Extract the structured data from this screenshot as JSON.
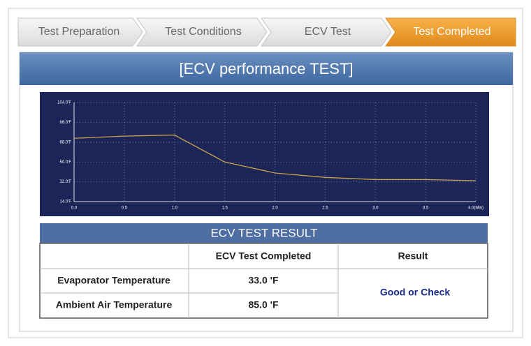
{
  "steps": [
    "Test Preparation",
    "Test Conditions",
    "ECV Test",
    "Test Completed"
  ],
  "header": {
    "title": "[ECV performance TEST]"
  },
  "chart_data": {
    "type": "line",
    "x": [
      0,
      0.5,
      1,
      1.5,
      2,
      2.5,
      3,
      3.5,
      4
    ],
    "series": [
      {
        "color": "#c9a24a",
        "values": [
          71.5,
          73.5,
          74.5,
          50,
          40,
          36,
          34,
          34,
          33
        ]
      }
    ],
    "xlim": [
      0,
      4
    ],
    "ylim": [
      14,
      104
    ],
    "xticks": [
      {
        "value": 0,
        "label": "0.0"
      },
      0.5,
      {
        "value": 1,
        "label": "1.0"
      },
      1.5,
      {
        "value": 2,
        "label": "2.0"
      },
      2.5,
      {
        "value": 3,
        "label": "3.0"
      },
      3.5,
      {
        "value": 4,
        "label": "4.0(Min)"
      }
    ],
    "yticks": [
      {
        "value": 14,
        "label": "14.0'F"
      },
      {
        "value": 32,
        "label": "32.0'F"
      },
      {
        "value": 50,
        "label": "50.0'F"
      },
      {
        "value": 68,
        "label": "68.0'F"
      },
      {
        "value": 86,
        "label": "86.0'F"
      },
      {
        "value": 104,
        "label": "104.0'F"
      }
    ],
    "grid": true
  },
  "result": {
    "title": "ECV TEST RESULT",
    "columns": [
      "ECV Test Completed",
      "Result"
    ],
    "rows": [
      [
        "Evaporator Temperature",
        "33.0 'F"
      ],
      [
        "Ambient Air Temperature",
        "85.0 'F"
      ]
    ],
    "verdict": "Good or Check"
  }
}
